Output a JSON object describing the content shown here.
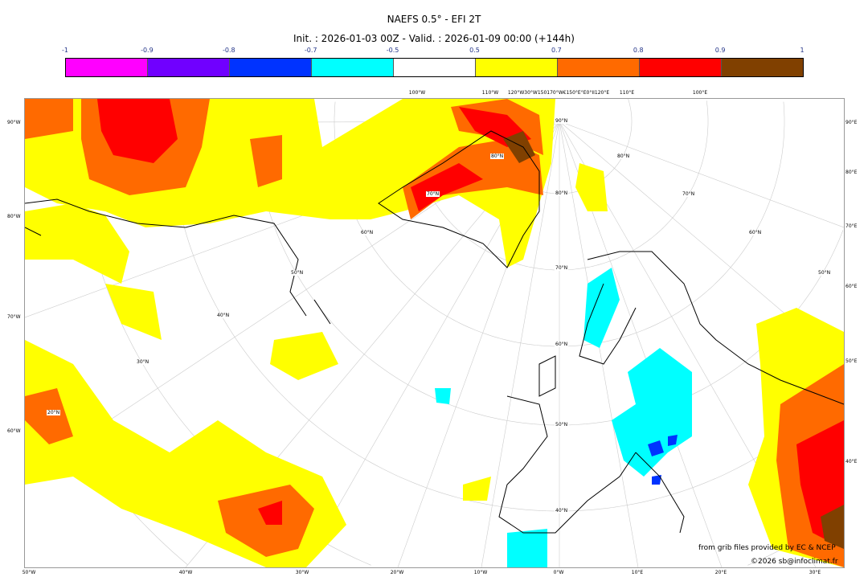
{
  "header": {
    "title": "NAEFS 0.5° - EFI 2T",
    "subtitle": "Init. : 2026-01-03 00Z - Valid. : 2026-01-09 00:00 (+144h)"
  },
  "colorbar": {
    "labels": [
      "-1",
      "-0.9",
      "-0.8",
      "-0.7",
      "-0.5",
      "0.5",
      "0.7",
      "0.8",
      "0.9",
      "1"
    ],
    "colors": [
      "#ff00ff",
      "#7000ff",
      "#0033ff",
      "#00ffff",
      "#ffffff",
      "#ffff00",
      "#ff6a00",
      "#ff0000",
      "#804000"
    ]
  },
  "axes": {
    "bottom": [
      "50°W",
      "40°W",
      "30°W",
      "20°W",
      "10°W",
      "0°W",
      "10°E",
      "20°E",
      "30°E"
    ],
    "left": [
      "90°W",
      "80°W",
      "70°W",
      "60°W"
    ],
    "right": [
      "90°E",
      "80°E",
      "70°E",
      "60°E",
      "50°E",
      "40°E"
    ],
    "top": [
      "100°W",
      "110°W",
      "120°W30°W150170°W€150°E°E0°II120°E",
      "110°E",
      "100°E"
    ]
  },
  "lat_labels": [
    "90°N",
    "80°N",
    "70°N",
    "60°N",
    "50°N",
    "40°N",
    "50°N",
    "40°N",
    "30°N",
    "20°N",
    "60°N",
    "70°N",
    "80°N",
    "80°N",
    "70°N",
    "60°N",
    "50°N"
  ],
  "credits": {
    "source": "from grib files provided by EC & NCEP",
    "copyright": "©2026 sb@infoclimat.fr"
  }
}
